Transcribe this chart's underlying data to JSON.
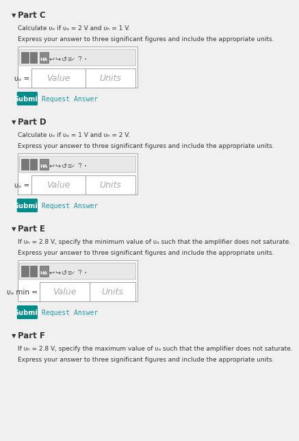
{
  "bg_color": "#f0f0f0",
  "white": "#ffffff",
  "teal": "#008B8B",
  "border_color": "#cccccc",
  "text_color": "#333333",
  "link_color": "#2196a6",
  "toolbar_bg": "#888888",
  "toolbar_btn": "#555555",
  "parts": [
    {
      "label": "Part C",
      "line1": "Calculate υₒ if υₐ = 2 V and υₕ = 1 V.",
      "line2": "Express your answer to three significant figures and include the appropriate units.",
      "prefix": "υₒ ="
    },
    {
      "label": "Part D",
      "line1": "Calculate υₒ if υₐ = 1 V and υₕ = 2 V.",
      "line2": "Express your answer to three significant figures and include the appropriate units.",
      "prefix": "υₒ ="
    },
    {
      "label": "Part E",
      "line1": "If υₕ = 2.8 V, specify the minimum value of υₐ such that the amplifier does not saturate.",
      "line2": "Express your answer to three significant figures and include the appropriate units.",
      "prefix": "υₐ min ="
    },
    {
      "label": "Part F",
      "line1": "If υₕ = 2.8 V, specify the maximum value of υₐ such that the amplifier does not saturate.",
      "line2": "Express your answer to three significant figures and include the appropriate units.",
      "prefix": ""
    }
  ]
}
